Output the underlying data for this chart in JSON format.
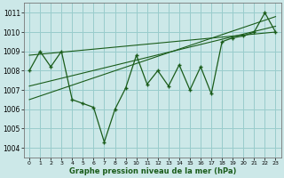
{
  "xlabel": "Graphe pression niveau de la mer (hPa)",
  "bg_color": "#cce8e8",
  "grid_color": "#99cccc",
  "line_color": "#1a5c1a",
  "xlim": [
    -0.5,
    23.5
  ],
  "ylim": [
    1003.5,
    1011.5
  ],
  "yticks": [
    1004,
    1005,
    1006,
    1007,
    1008,
    1009,
    1010,
    1011
  ],
  "xticks": [
    0,
    1,
    2,
    3,
    4,
    5,
    6,
    7,
    8,
    9,
    10,
    11,
    12,
    13,
    14,
    15,
    16,
    17,
    18,
    19,
    20,
    21,
    22,
    23
  ],
  "pressure_data": [
    1008.0,
    1009.0,
    1008.2,
    1009.0,
    1006.5,
    1006.3,
    1006.1,
    1004.3,
    1006.0,
    1007.1,
    1008.8,
    1007.3,
    1008.0,
    1007.2,
    1008.3,
    1007.0,
    1008.2,
    1006.8,
    1009.5,
    1009.7,
    1009.8,
    1010.0,
    1011.0,
    1010.0
  ],
  "trend_lines": [
    [
      [
        0,
        1008.8
      ],
      [
        23,
        1010.0
      ]
    ],
    [
      [
        0,
        1007.2
      ],
      [
        23,
        1010.3
      ]
    ],
    [
      [
        0,
        1006.5
      ],
      [
        23,
        1010.8
      ]
    ]
  ]
}
